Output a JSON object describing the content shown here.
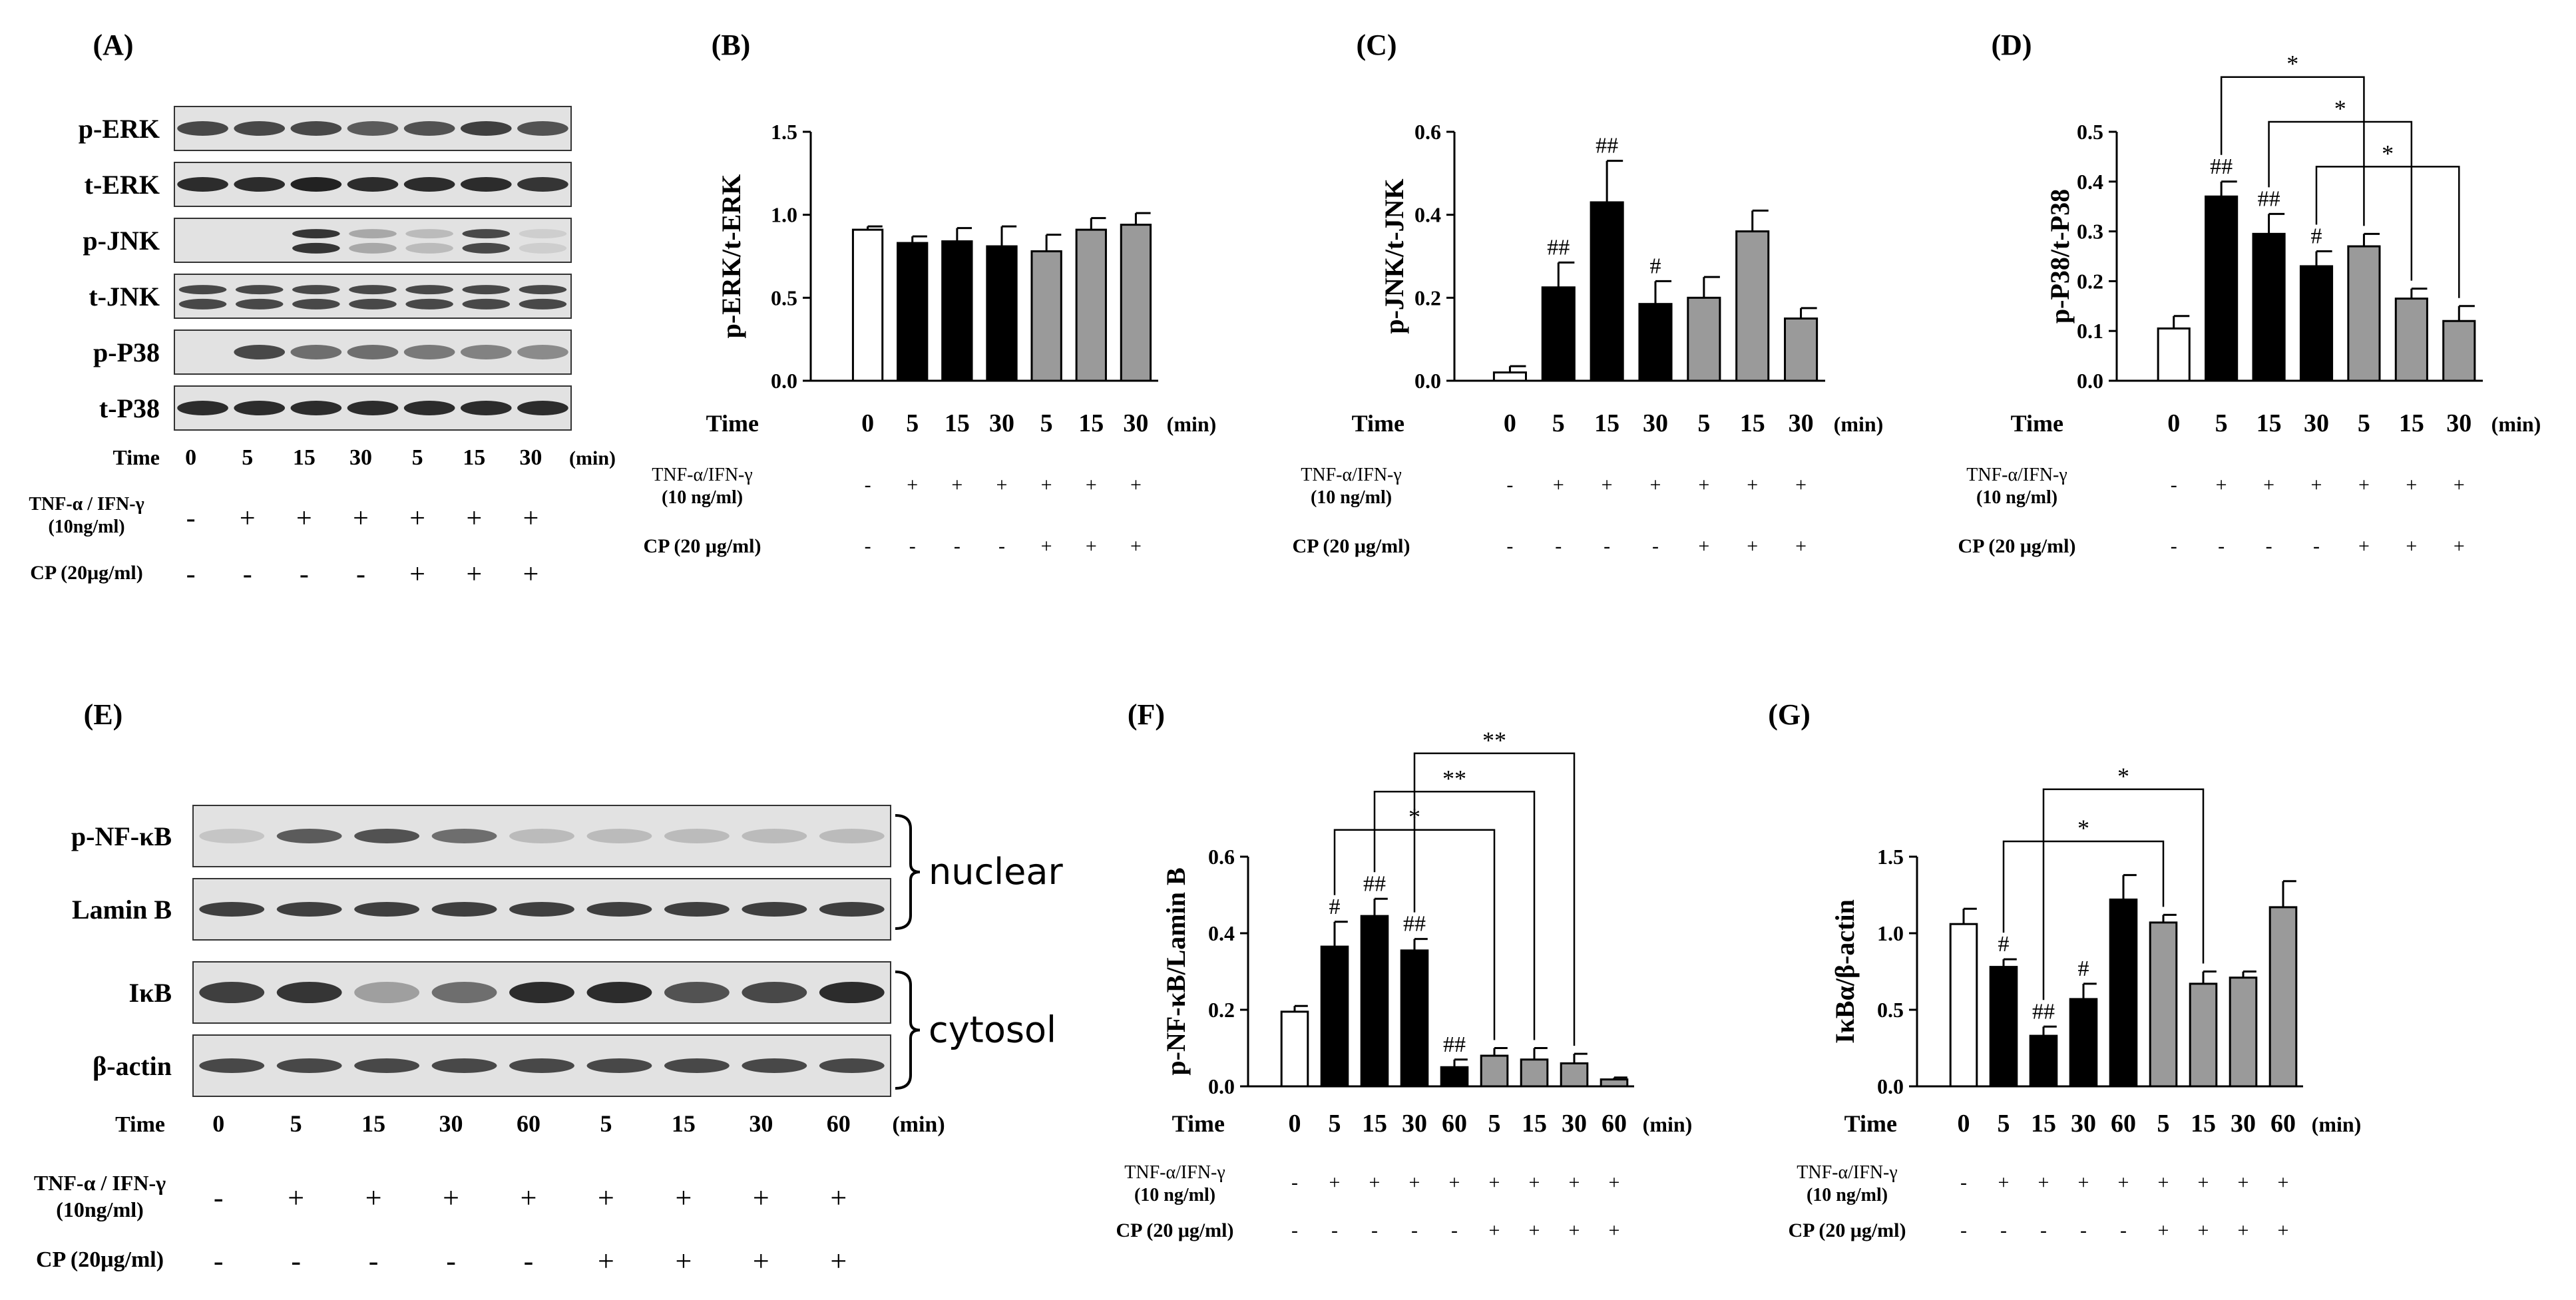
{
  "panel_letters": {
    "A": "(A)",
    "B": "(B)",
    "C": "(C)",
    "D": "(D)",
    "E": "(E)",
    "F": "(F)",
    "G": "(G)"
  },
  "common": {
    "time_label": "Time",
    "min_label": "(min)",
    "plus": "+",
    "minus": "-"
  },
  "blot_a": {
    "bands": [
      "p-ERK",
      "t-ERK",
      "p-JNK",
      "t-JNK",
      "p-P38",
      "t-P38"
    ],
    "times": [
      "0",
      "5",
      "15",
      "30",
      "5",
      "15",
      "30"
    ],
    "tnf_label_1": "TNF-α / IFN-γ",
    "tnf_label_2": "(10ng/ml)",
    "cp_label": "CP (20μg/ml)",
    "tnf": [
      "-",
      "+",
      "+",
      "+",
      "+",
      "+",
      "+"
    ],
    "cp": [
      "-",
      "-",
      "-",
      "-",
      "+",
      "+",
      "+"
    ]
  },
  "blot_e": {
    "bands": [
      "p-NF-κB",
      "Lamin B",
      "IκB",
      "β-actin"
    ],
    "groups": [
      "nuclear",
      "cytosol"
    ],
    "times": [
      "0",
      "5",
      "15",
      "30",
      "60",
      "5",
      "15",
      "30",
      "60"
    ],
    "tnf_label_1": "TNF-α / IFN-γ",
    "tnf_label_2": "(10ng/ml)",
    "cp_label": "CP (20μg/ml)",
    "tnf": [
      "-",
      "+",
      "+",
      "+",
      "+",
      "+",
      "+",
      "+",
      "+"
    ],
    "cp": [
      "-",
      "-",
      "-",
      "-",
      "-",
      "+",
      "+",
      "+",
      "+"
    ]
  },
  "chart_data": [
    {
      "panel": "(B)",
      "type": "bar",
      "ylabel": "p-ERK/t-ERK",
      "ylim": [
        0,
        1.5
      ],
      "yticks": [
        "0.0",
        "0.5",
        "1.0",
        "1.5"
      ],
      "categories": [
        "0",
        "5",
        "15",
        "30",
        "5",
        "15",
        "30"
      ],
      "values": [
        0.91,
        0.83,
        0.84,
        0.81,
        0.78,
        0.91,
        0.94
      ],
      "errors": [
        0.02,
        0.04,
        0.08,
        0.12,
        0.1,
        0.07,
        0.07
      ],
      "colors": [
        "#ffffff",
        "#000000",
        "#000000",
        "#000000",
        "#9a9a9a",
        "#9a9a9a",
        "#9a9a9a"
      ],
      "marks": [
        "",
        "",
        "",
        "",
        "",
        "",
        ""
      ],
      "tnf": [
        "-",
        "+",
        "+",
        "+",
        "+",
        "+",
        "+"
      ],
      "cp": [
        "-",
        "-",
        "-",
        "-",
        "+",
        "+",
        "+"
      ],
      "tnf_label_1": "TNF-α/IFN-γ",
      "tnf_label_2": "(10 ng/ml)",
      "cp_label": "CP (20 μg/ml)",
      "brackets": []
    },
    {
      "panel": "(C)",
      "type": "bar",
      "ylabel": "p-JNK/t-JNK",
      "ylim": [
        0,
        0.6
      ],
      "yticks": [
        "0.0",
        "0.2",
        "0.4",
        "0.6"
      ],
      "categories": [
        "0",
        "5",
        "15",
        "30",
        "5",
        "15",
        "30"
      ],
      "values": [
        0.02,
        0.225,
        0.43,
        0.185,
        0.2,
        0.36,
        0.15
      ],
      "errors": [
        0.015,
        0.06,
        0.1,
        0.055,
        0.05,
        0.05,
        0.025
      ],
      "colors": [
        "#ffffff",
        "#000000",
        "#000000",
        "#000000",
        "#9a9a9a",
        "#9a9a9a",
        "#9a9a9a"
      ],
      "marks": [
        "",
        "##",
        "##",
        "#",
        "",
        "",
        ""
      ],
      "tnf": [
        "-",
        "+",
        "+",
        "+",
        "+",
        "+",
        "+"
      ],
      "cp": [
        "-",
        "-",
        "-",
        "-",
        "+",
        "+",
        "+"
      ],
      "tnf_label_1": "TNF-α/IFN-γ",
      "tnf_label_2": "(10 ng/ml)",
      "cp_label": "CP (20 μg/ml)",
      "brackets": []
    },
    {
      "panel": "(D)",
      "type": "bar",
      "ylabel": "p-P38/t-P38",
      "ylim": [
        0,
        0.5
      ],
      "yticks": [
        "0.0",
        "0.1",
        "0.2",
        "0.3",
        "0.4",
        "0.5"
      ],
      "categories": [
        "0",
        "5",
        "15",
        "30",
        "5",
        "15",
        "30"
      ],
      "values": [
        0.105,
        0.37,
        0.295,
        0.23,
        0.27,
        0.165,
        0.12
      ],
      "errors": [
        0.025,
        0.03,
        0.04,
        0.03,
        0.025,
        0.02,
        0.03
      ],
      "colors": [
        "#ffffff",
        "#000000",
        "#000000",
        "#000000",
        "#9a9a9a",
        "#9a9a9a",
        "#9a9a9a"
      ],
      "marks": [
        "",
        "##",
        "##",
        "#",
        "",
        "",
        ""
      ],
      "tnf": [
        "-",
        "+",
        "+",
        "+",
        "+",
        "+",
        "+"
      ],
      "cp": [
        "-",
        "-",
        "-",
        "-",
        "+",
        "+",
        "+"
      ],
      "tnf_label_1": "TNF-α/IFN-γ",
      "tnf_label_2": "(10 ng/ml)",
      "cp_label": "CP (20 μg/ml)",
      "brackets": [
        {
          "from": 1,
          "to": 4,
          "level": 0.61,
          "label": "*"
        },
        {
          "from": 2,
          "to": 5,
          "level": 0.52,
          "label": "*"
        },
        {
          "from": 3,
          "to": 6,
          "level": 0.43,
          "label": "*"
        }
      ]
    },
    {
      "panel": "(F)",
      "type": "bar",
      "ylabel": "p-NF-κB/Lamin B",
      "ylim": [
        0,
        0.6
      ],
      "yticks": [
        "0.0",
        "0.2",
        "0.4",
        "0.6"
      ],
      "categories": [
        "0",
        "5",
        "15",
        "30",
        "60",
        "5",
        "15",
        "30",
        "60"
      ],
      "values": [
        0.195,
        0.365,
        0.445,
        0.355,
        0.05,
        0.08,
        0.07,
        0.06,
        0.018
      ],
      "errors": [
        0.015,
        0.065,
        0.045,
        0.03,
        0.02,
        0.02,
        0.03,
        0.025,
        0.005
      ],
      "colors": [
        "#ffffff",
        "#000000",
        "#000000",
        "#000000",
        "#000000",
        "#9a9a9a",
        "#9a9a9a",
        "#9a9a9a",
        "#9a9a9a"
      ],
      "marks": [
        "",
        "#",
        "##",
        "##",
        "##",
        "",
        "",
        "",
        ""
      ],
      "tnf": [
        "-",
        "+",
        "+",
        "+",
        "+",
        "+",
        "+",
        "+",
        "+"
      ],
      "cp": [
        "-",
        "-",
        "-",
        "-",
        "-",
        "+",
        "+",
        "+",
        "+"
      ],
      "tnf_label_1": "TNF-α/IFN-γ",
      "tnf_label_2": "(10 ng/ml)",
      "cp_label": "CP (20 μg/ml)",
      "brackets": [
        {
          "from": 3,
          "to": 7,
          "level": 0.87,
          "label": "**"
        },
        {
          "from": 2,
          "to": 6,
          "level": 0.77,
          "label": "**"
        },
        {
          "from": 1,
          "to": 5,
          "level": 0.67,
          "label": "*"
        }
      ]
    },
    {
      "panel": "(G)",
      "type": "bar",
      "ylabel": "IκBα/β-actin",
      "ylim": [
        0,
        1.5
      ],
      "yticks": [
        "0.0",
        "0.5",
        "1.0",
        "1.5"
      ],
      "categories": [
        "0",
        "5",
        "15",
        "30",
        "60",
        "5",
        "15",
        "30",
        "60"
      ],
      "values": [
        1.06,
        0.78,
        0.33,
        0.57,
        1.22,
        1.07,
        0.67,
        0.71,
        1.17
      ],
      "errors": [
        0.1,
        0.05,
        0.06,
        0.1,
        0.16,
        0.05,
        0.08,
        0.04,
        0.17
      ],
      "colors": [
        "#ffffff",
        "#000000",
        "#000000",
        "#000000",
        "#000000",
        "#9a9a9a",
        "#9a9a9a",
        "#9a9a9a",
        "#9a9a9a"
      ],
      "marks": [
        "",
        "#",
        "##",
        "#",
        "",
        "",
        "",
        "",
        ""
      ],
      "tnf": [
        "-",
        "+",
        "+",
        "+",
        "+",
        "+",
        "+",
        "+",
        "+"
      ],
      "cp": [
        "-",
        "-",
        "-",
        "-",
        "-",
        "+",
        "+",
        "+",
        "+"
      ],
      "tnf_label_1": "TNF-α/IFN-γ",
      "tnf_label_2": "(10 ng/ml)",
      "cp_label": "CP (20 μg/ml)",
      "brackets": [
        {
          "from": 2,
          "to": 6,
          "level": 1.94,
          "label": "*"
        },
        {
          "from": 1,
          "to": 5,
          "level": 1.6,
          "label": "*"
        }
      ]
    }
  ]
}
